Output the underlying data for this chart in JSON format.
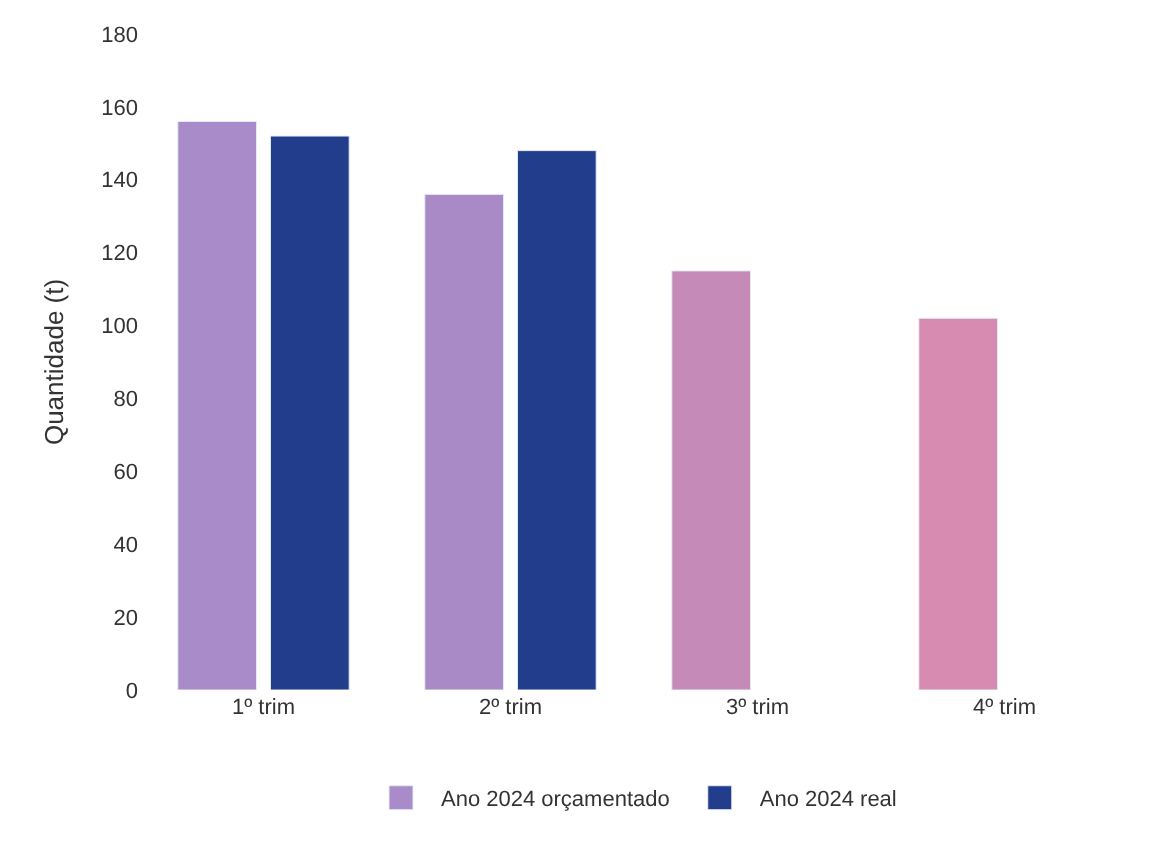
{
  "chart_data": {
    "type": "bar",
    "ylabel": "Quantidade (t)",
    "categories": [
      "1º trim",
      "2º trim",
      "3º trim",
      "4º trim"
    ],
    "series": [
      {
        "name": "Ano 2024 orçamentado",
        "color": "#a98ac6",
        "colors": [
          "#a88bc8",
          "#a98ac6",
          "#c58ab8",
          "#d88bb0"
        ],
        "values": [
          156,
          136,
          115,
          102
        ]
      },
      {
        "name": "Ano 2024 real",
        "color": "#223d8c",
        "values": [
          152,
          148,
          null,
          null
        ]
      }
    ],
    "ylim": [
      0,
      180
    ],
    "yticks": [
      0,
      20,
      40,
      60,
      80,
      100,
      120,
      140,
      160,
      180
    ],
    "legend": "bottom"
  }
}
